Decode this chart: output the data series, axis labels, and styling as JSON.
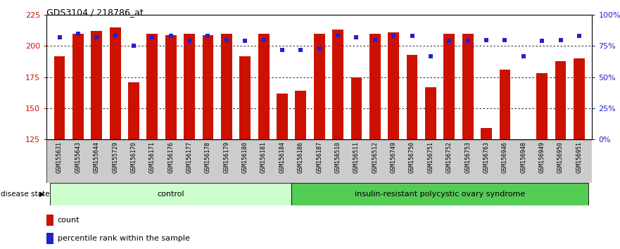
{
  "title": "GDS3104 / 218786_at",
  "samples": [
    "GSM155631",
    "GSM155643",
    "GSM155644",
    "GSM155729",
    "GSM156170",
    "GSM156171",
    "GSM156176",
    "GSM156177",
    "GSM156178",
    "GSM156179",
    "GSM156180",
    "GSM156181",
    "GSM156184",
    "GSM156186",
    "GSM156187",
    "GSM156510",
    "GSM156511",
    "GSM156512",
    "GSM156749",
    "GSM156750",
    "GSM156751",
    "GSM156752",
    "GSM156753",
    "GSM156763",
    "GSM156946",
    "GSM156948",
    "GSM156949",
    "GSM156950",
    "GSM156951"
  ],
  "counts": [
    192,
    210,
    212,
    215,
    171,
    210,
    209,
    210,
    209,
    210,
    192,
    210,
    162,
    164,
    210,
    213,
    175,
    210,
    211,
    193,
    167,
    210,
    210,
    134,
    181,
    125,
    178,
    188,
    190
  ],
  "percentile_ranks": [
    82,
    85,
    82,
    84,
    75,
    82,
    83,
    79,
    83,
    80,
    79,
    80,
    72,
    72,
    73,
    84,
    82,
    80,
    83,
    83,
    67,
    79,
    79,
    80,
    80,
    67,
    79,
    80,
    83
  ],
  "control_count": 13,
  "disease_count": 16,
  "group_labels": [
    "control",
    "insulin-resistant polycystic ovary syndrome"
  ],
  "bar_color": "#CC1100",
  "dot_color": "#2222CC",
  "ylim_left": [
    125,
    225
  ],
  "ylim_right": [
    0,
    100
  ],
  "yticks_left": [
    125,
    150,
    175,
    200,
    225
  ],
  "yticks_right": [
    0,
    25,
    50,
    75,
    100
  ],
  "grid_values": [
    150,
    175,
    200
  ],
  "control_bg": "#CCFFCC",
  "disease_bg": "#55CC55",
  "label_bg": "#CCCCCC",
  "legend_count_label": "count",
  "legend_pct_label": "percentile rank within the sample",
  "fig_width": 8.81,
  "fig_height": 3.54,
  "dpi": 100
}
